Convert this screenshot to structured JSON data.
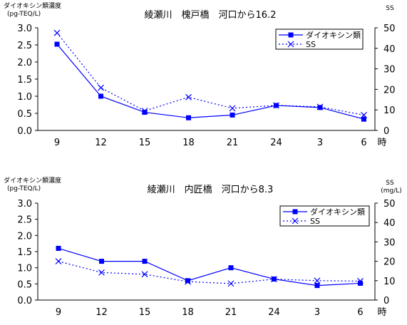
{
  "chart_data": [
    {
      "type": "line",
      "title": "綾瀬川　槐戸橋　河口から16.2",
      "ylabel_left": [
        "ダイオキシン類濃度",
        "(pg-TEQ/L)"
      ],
      "ylabel_right": "SS",
      "ylim_left": [
        0,
        3.0
      ],
      "ylim_right": [
        0,
        50
      ],
      "yticks_left": [
        "0.0",
        "0.5",
        "1.0",
        "1.5",
        "2.0",
        "2.5",
        "3.0"
      ],
      "yticks_right": [
        "0",
        "10",
        "20",
        "30",
        "40",
        "50"
      ],
      "categories": [
        "9",
        "12",
        "15",
        "18",
        "21",
        "24",
        "3",
        "6"
      ],
      "x_unit": "時",
      "grid": false,
      "legend_position": "top-right",
      "series": [
        {
          "name": "ダイオキシン類",
          "axis": "left",
          "style": "solid-square",
          "values": [
            2.52,
            1.0,
            0.53,
            0.37,
            0.45,
            0.73,
            0.67,
            0.33
          ]
        },
        {
          "name": "SS",
          "axis": "right",
          "style": "dotted-x",
          "values": [
            47.5,
            20.8,
            9.5,
            16.2,
            10.8,
            12.2,
            11.5,
            7.5
          ]
        }
      ]
    },
    {
      "type": "line",
      "title": "綾瀬川　内匠橋　河口から8.3",
      "ylabel_left": [
        "ダイオキシン類濃度",
        "(pg-TEQ/L)"
      ],
      "ylabel_right": "SS",
      "yunit_right": "(mg/L)",
      "ylim_left": [
        0,
        3.0
      ],
      "ylim_right": [
        0,
        50
      ],
      "yticks_left": [
        "0.0",
        "0.5",
        "1.0",
        "1.5",
        "2.0",
        "2.5",
        "3.0"
      ],
      "yticks_right": [
        "0",
        "10",
        "20",
        "30",
        "40",
        "50"
      ],
      "categories": [
        "9",
        "12",
        "15",
        "18",
        "21",
        "24",
        "3",
        "6"
      ],
      "x_unit": "時",
      "grid": false,
      "legend_position": "top-right",
      "series": [
        {
          "name": "ダイオキシン類",
          "axis": "left",
          "style": "solid-square",
          "values": [
            1.6,
            1.2,
            1.2,
            0.6,
            1.0,
            0.65,
            0.45,
            0.52
          ]
        },
        {
          "name": "SS",
          "axis": "right",
          "style": "dotted-x",
          "values": [
            20.0,
            14.2,
            13.3,
            9.5,
            8.5,
            10.8,
            10.0,
            9.8
          ]
        }
      ]
    }
  ],
  "colors": {
    "series": "#0000ff",
    "axis": "#000000"
  }
}
